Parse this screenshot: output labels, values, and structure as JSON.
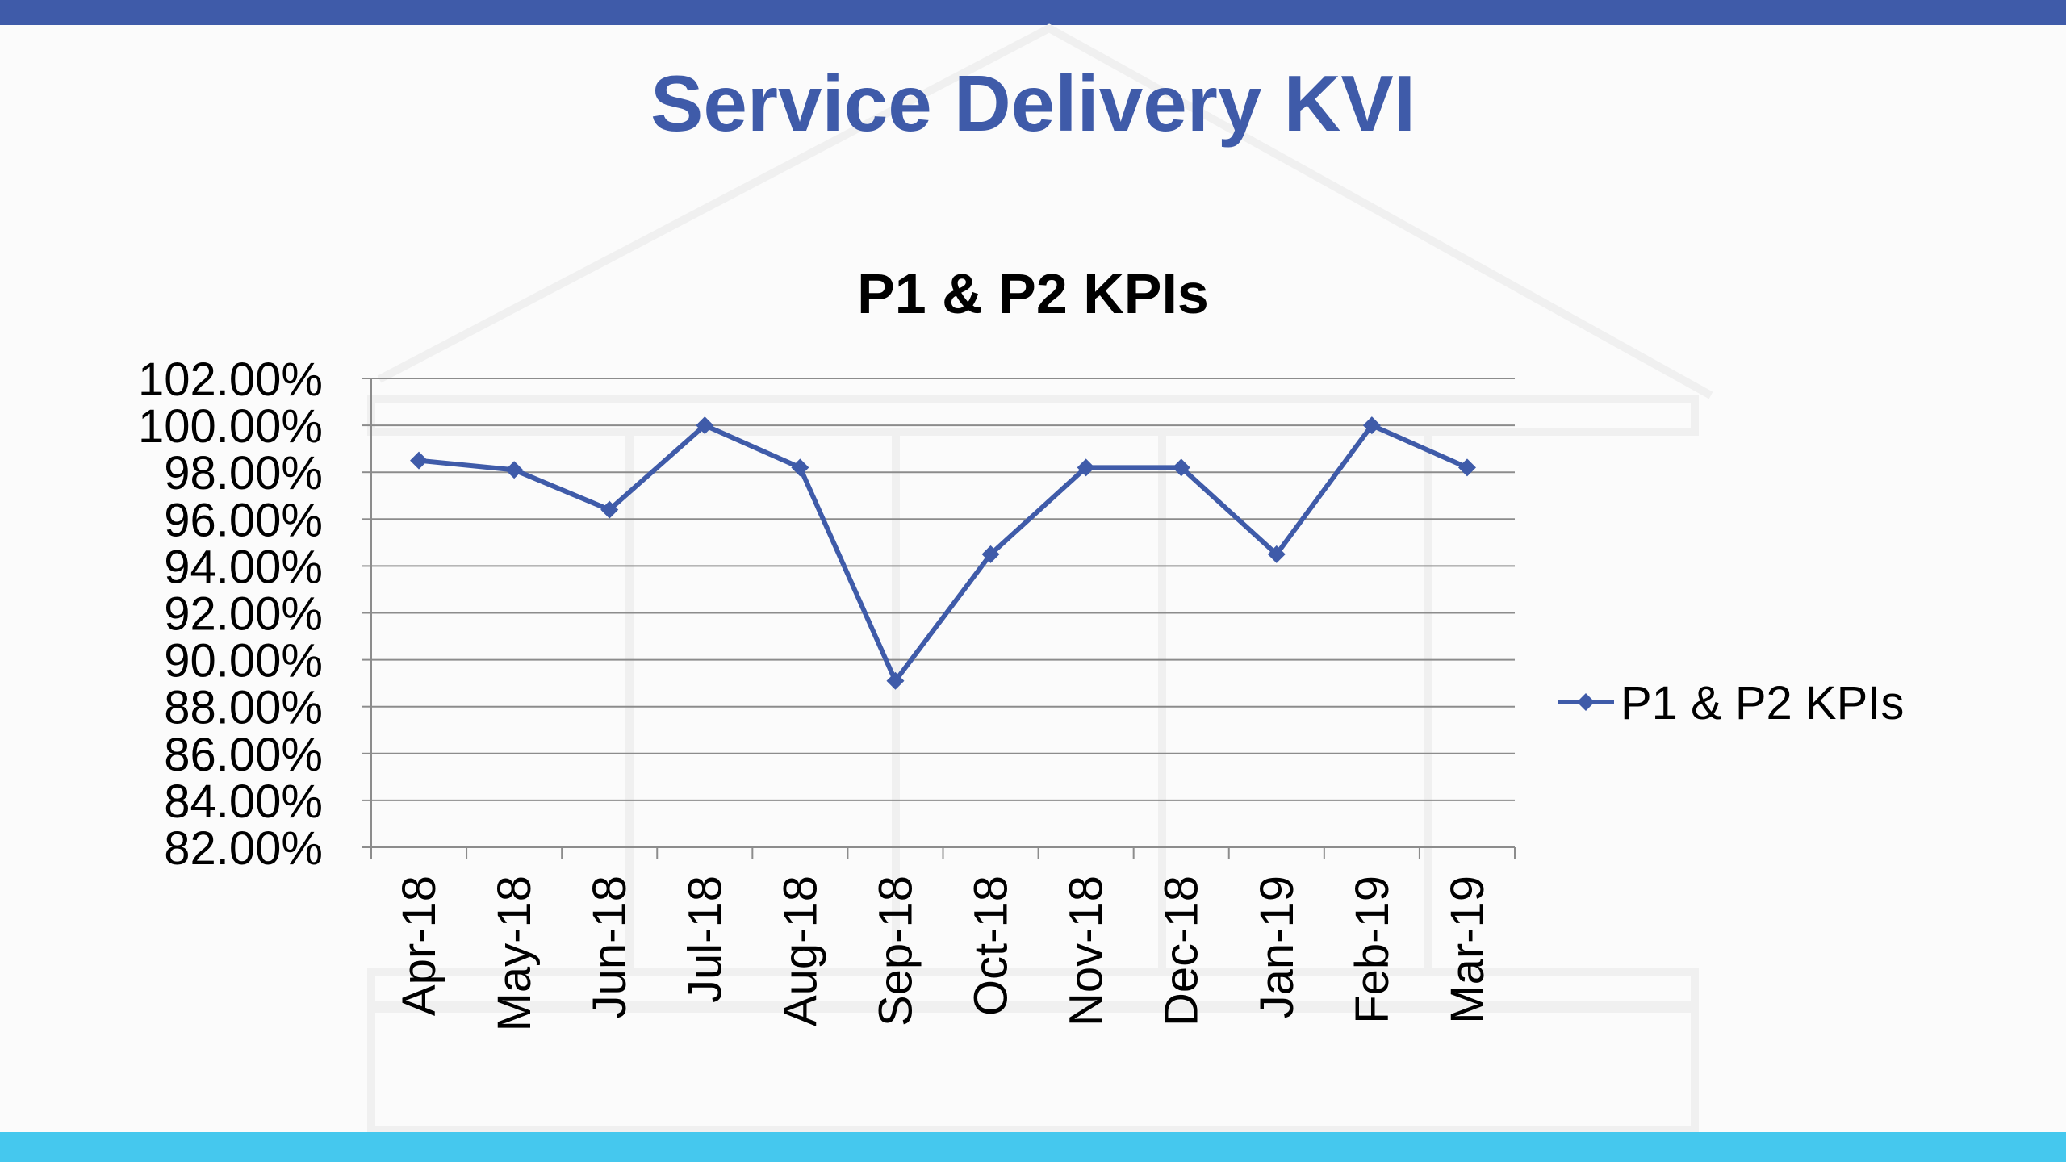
{
  "slide": {
    "title": "Service Delivery KVI",
    "colors": {
      "top_bar": "#3f5ba9",
      "bottom_bar": "#45c8ee",
      "title": "#3f5ba9",
      "series": "#3f5ba9"
    }
  },
  "chart_data": {
    "type": "line",
    "title": "P1 & P2 KPIs",
    "xlabel": "",
    "ylabel": "",
    "categories": [
      "Apr-18",
      "May-18",
      "Jun-18",
      "Jul-18",
      "Aug-18",
      "Sep-18",
      "Oct-18",
      "Nov-18",
      "Dec-18",
      "Jan-19",
      "Feb-19",
      "Mar-19"
    ],
    "series": [
      {
        "name": "P1 & P2 KPIs",
        "values": [
          98.5,
          98.1,
          96.4,
          100.0,
          98.2,
          89.1,
          94.5,
          98.2,
          98.2,
          94.5,
          100.0,
          98.2
        ],
        "marker": "diamond",
        "color": "#3f5ba9"
      }
    ],
    "ylim": [
      82,
      102
    ],
    "yticks": [
      82,
      84,
      86,
      88,
      90,
      92,
      94,
      96,
      98,
      100,
      102
    ],
    "ytick_labels": [
      "82.00%",
      "84.00%",
      "86.00%",
      "88.00%",
      "90.00%",
      "92.00%",
      "94.00%",
      "96.00%",
      "98.00%",
      "100.00%",
      "102.00%"
    ],
    "grid": true,
    "legend": "right"
  }
}
